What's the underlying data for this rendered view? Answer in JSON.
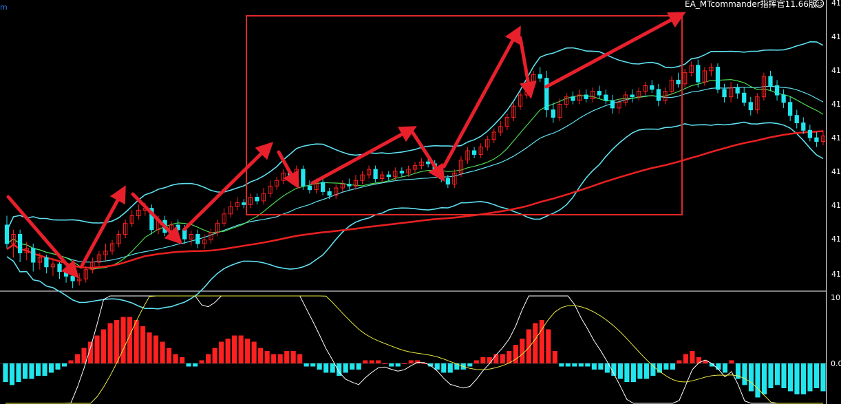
{
  "chart_data": {
    "type": "candlestick",
    "header": {
      "symbol_fragment": "m",
      "ea_label": "EA_MTcommander指挥官11.66版",
      "ea_icon": "smiley-icon"
    },
    "colors": {
      "bull": "#ff2020",
      "bear": "#22e6ee",
      "bollinger": "#5fe0f0",
      "ma_green": "#4cd84c",
      "ma_long": "#e82020",
      "box": "#e02828",
      "arrows": "#e8202c",
      "hist_pos": "#ff2020",
      "hist_neg": "#22e6ee",
      "osc_white": "#ffffff",
      "osc_yellow": "#e8e840"
    },
    "price_axis_labels": [
      "41",
      "41",
      "41",
      "41",
      "41",
      "41",
      "41",
      "41",
      "41"
    ],
    "osc_axis_labels": [
      "10.",
      "0.0"
    ],
    "candles": [
      [
        -20,
        -40,
        -45,
        -10
      ],
      [
        -40,
        -30,
        -55,
        -25
      ],
      [
        -30,
        -50,
        -60,
        -25
      ],
      [
        -50,
        -45,
        -58,
        -38
      ],
      [
        -45,
        -60,
        -70,
        -40
      ],
      [
        -60,
        -55,
        -68,
        -50
      ],
      [
        -55,
        -65,
        -72,
        -52
      ],
      [
        -65,
        -62,
        -75,
        -58
      ],
      [
        -62,
        -70,
        -78,
        -60
      ],
      [
        -70,
        -75,
        -82,
        -66
      ],
      [
        -75,
        -80,
        -88,
        -72
      ],
      [
        -80,
        -78,
        -85,
        -72
      ],
      [
        -78,
        -68,
        -82,
        -64
      ],
      [
        -68,
        -60,
        -72,
        -55
      ],
      [
        -60,
        -52,
        -64,
        -48
      ],
      [
        -52,
        -48,
        -58,
        -40
      ],
      [
        -48,
        -40,
        -52,
        -36
      ],
      [
        -40,
        -30,
        -44,
        -26
      ],
      [
        -30,
        -18,
        -34,
        -14
      ],
      [
        -18,
        -10,
        -22,
        -4
      ],
      [
        -10,
        -4,
        -14,
        2
      ],
      [
        -4,
        -2,
        -10,
        4
      ],
      [
        -2,
        -25,
        -30,
        2
      ],
      [
        -25,
        -15,
        -30,
        -10
      ],
      [
        -15,
        -28,
        -32,
        -10
      ],
      [
        -28,
        -20,
        -34,
        -16
      ],
      [
        -20,
        -25,
        -30,
        -14
      ],
      [
        -25,
        -35,
        -40,
        -20
      ],
      [
        -35,
        -30,
        -42,
        -26
      ],
      [
        -30,
        -40,
        -45,
        -25
      ],
      [
        -40,
        -36,
        -46,
        -30
      ],
      [
        -36,
        -28,
        -40,
        -24
      ],
      [
        -28,
        -18,
        -32,
        -14
      ],
      [
        -18,
        -8,
        -22,
        -2
      ],
      [
        -8,
        0,
        -12,
        6
      ],
      [
        0,
        4,
        -4,
        10
      ],
      [
        4,
        2,
        -2,
        8
      ],
      [
        2,
        10,
        -2,
        14
      ],
      [
        10,
        6,
        2,
        14
      ],
      [
        6,
        14,
        2,
        20
      ],
      [
        14,
        22,
        10,
        28
      ],
      [
        22,
        28,
        18,
        32
      ],
      [
        28,
        36,
        24,
        40
      ],
      [
        36,
        34,
        30,
        40
      ],
      [
        34,
        40,
        30,
        44
      ],
      [
        40,
        22,
        18,
        44
      ],
      [
        22,
        18,
        14,
        28
      ],
      [
        18,
        26,
        14,
        30
      ],
      [
        26,
        16,
        12,
        30
      ],
      [
        16,
        12,
        8,
        20
      ],
      [
        12,
        20,
        8,
        24
      ],
      [
        20,
        24,
        16,
        28
      ],
      [
        24,
        22,
        18,
        30
      ],
      [
        22,
        28,
        18,
        34
      ],
      [
        28,
        34,
        24,
        38
      ],
      [
        34,
        40,
        30,
        44
      ],
      [
        40,
        30,
        26,
        44
      ],
      [
        30,
        34,
        26,
        38
      ],
      [
        34,
        32,
        28,
        38
      ],
      [
        32,
        38,
        28,
        42
      ],
      [
        38,
        36,
        32,
        42
      ],
      [
        36,
        40,
        32,
        44
      ],
      [
        40,
        44,
        36,
        48
      ],
      [
        44,
        48,
        40,
        52
      ],
      [
        48,
        46,
        42,
        52
      ],
      [
        46,
        38,
        34,
        50
      ],
      [
        38,
        30,
        26,
        42
      ],
      [
        30,
        24,
        20,
        34
      ],
      [
        24,
        36,
        20,
        40
      ],
      [
        36,
        50,
        32,
        54
      ],
      [
        50,
        60,
        46,
        64
      ],
      [
        60,
        56,
        52,
        64
      ],
      [
        56,
        64,
        52,
        68
      ],
      [
        64,
        72,
        60,
        76
      ],
      [
        72,
        80,
        68,
        84
      ],
      [
        80,
        86,
        76,
        92
      ],
      [
        86,
        96,
        82,
        100
      ],
      [
        96,
        108,
        92,
        112
      ],
      [
        108,
        120,
        104,
        124
      ],
      [
        120,
        132,
        116,
        136
      ],
      [
        132,
        142,
        128,
        146
      ],
      [
        142,
        138,
        134,
        150
      ],
      [
        138,
        104,
        96,
        146
      ],
      [
        104,
        96,
        90,
        112
      ],
      [
        96,
        110,
        92,
        116
      ],
      [
        110,
        118,
        106,
        122
      ],
      [
        118,
        114,
        110,
        124
      ],
      [
        114,
        120,
        110,
        126
      ],
      [
        120,
        116,
        112,
        126
      ],
      [
        116,
        124,
        112,
        128
      ],
      [
        124,
        120,
        116,
        130
      ],
      [
        120,
        114,
        110,
        126
      ],
      [
        114,
        106,
        100,
        120
      ],
      [
        106,
        112,
        100,
        116
      ],
      [
        112,
        120,
        108,
        124
      ],
      [
        120,
        118,
        112,
        126
      ],
      [
        118,
        124,
        114,
        128
      ],
      [
        124,
        130,
        120,
        134
      ],
      [
        130,
        126,
        122,
        136
      ],
      [
        126,
        114,
        108,
        132
      ],
      [
        114,
        124,
        110,
        128
      ],
      [
        124,
        136,
        120,
        140
      ],
      [
        136,
        132,
        128,
        144
      ],
      [
        132,
        144,
        128,
        148
      ],
      [
        144,
        152,
        140,
        156
      ],
      [
        152,
        134,
        128,
        158
      ],
      [
        134,
        146,
        130,
        150
      ],
      [
        146,
        150,
        140,
        154
      ],
      [
        150,
        126,
        122,
        154
      ],
      [
        126,
        118,
        112,
        132
      ],
      [
        118,
        128,
        112,
        134
      ],
      [
        128,
        122,
        116,
        132
      ],
      [
        122,
        112,
        108,
        128
      ],
      [
        112,
        104,
        98,
        118
      ],
      [
        104,
        118,
        100,
        122
      ],
      [
        118,
        140,
        114,
        144
      ],
      [
        140,
        130,
        124,
        146
      ],
      [
        130,
        120,
        114,
        136
      ],
      [
        120,
        112,
        106,
        126
      ],
      [
        112,
        98,
        92,
        118
      ],
      [
        98,
        90,
        84,
        104
      ],
      [
        90,
        82,
        78,
        96
      ],
      [
        82,
        74,
        70,
        88
      ],
      [
        74,
        70,
        64,
        80
      ],
      [
        70,
        76,
        66,
        82
      ]
    ],
    "series": [
      {
        "name": "",
        "values": []
      }
    ],
    "histogram": [
      -6,
      -7,
      -6,
      -5,
      -5,
      -4,
      -4,
      -3,
      -2,
      -1,
      1,
      3,
      5,
      7,
      9,
      11,
      13,
      14,
      15,
      15,
      14,
      12,
      10,
      9,
      7,
      5,
      3,
      2,
      -1,
      -1,
      1,
      3,
      5,
      7,
      8,
      9,
      9,
      8,
      7,
      5,
      4,
      3,
      3,
      4,
      4,
      3,
      -1,
      -1,
      -2,
      -3,
      -3,
      -4,
      -3,
      -2,
      -2,
      1,
      1,
      1,
      0,
      -1,
      -1,
      0,
      1,
      1,
      0,
      -1,
      -2,
      -3,
      -3,
      -2,
      -2,
      -1,
      1,
      2,
      2,
      3,
      3,
      4,
      6,
      8,
      11,
      13,
      14,
      11,
      4,
      -1,
      -1,
      -1,
      -1,
      -1,
      -2,
      -2,
      -3,
      -4,
      -5,
      -6,
      -6,
      -5,
      -5,
      -4,
      -3,
      -2,
      -2,
      1,
      3,
      4,
      2,
      1,
      -1,
      -2,
      -3,
      1,
      -5,
      -7,
      -9,
      -11,
      -10,
      -8,
      -7,
      -8,
      -9,
      -10,
      -10,
      -9,
      -8,
      -9
    ]
  }
}
